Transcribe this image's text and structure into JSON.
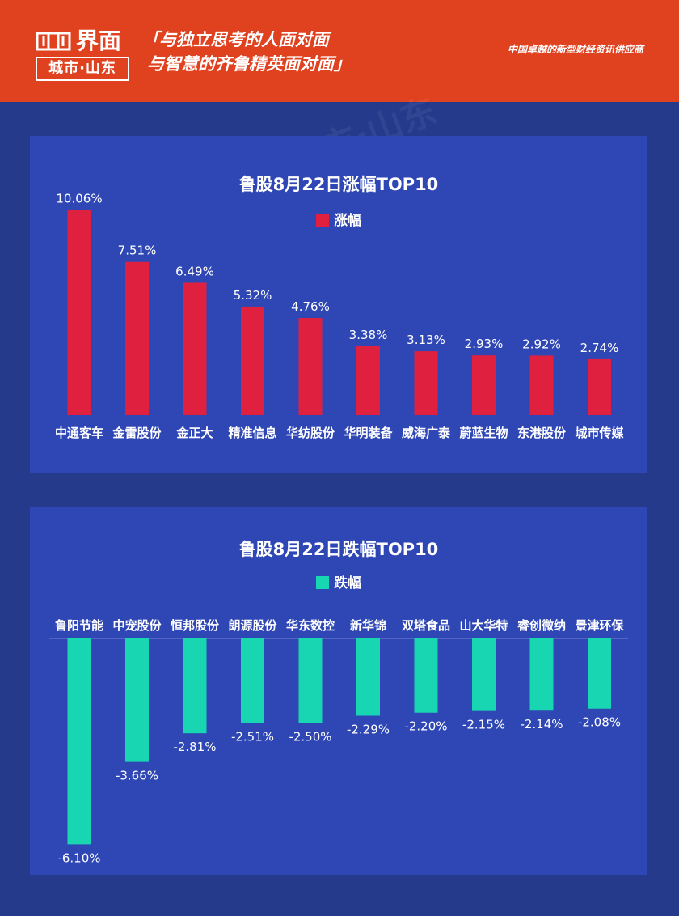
{
  "header": {
    "brand": "界面",
    "sub": "城市·山东",
    "slogan_line1": "「与独立思考的人面对面",
    "slogan_line2": "与智慧的齐鲁精英面对面」",
    "tagline": "中国卓越的新型财经资讯供应商"
  },
  "colors": {
    "header_bg": "#e0411f",
    "page_bg": "#263a8c",
    "panel_bg": "#2f47b5",
    "gain": "#e0203f",
    "loss": "#19d6b2"
  },
  "chart_data": [
    {
      "type": "bar",
      "title": "鲁股8月22日涨幅TOP10",
      "legend": "涨幅",
      "categories": [
        "中通客车",
        "金雷股份",
        "金正大",
        "精准信息",
        "华纺股份",
        "华明装备",
        "威海广泰",
        "蔚蓝生物",
        "东港股份",
        "城市传媒"
      ],
      "values": [
        10.06,
        7.51,
        6.49,
        5.32,
        4.76,
        3.38,
        3.13,
        2.93,
        2.92,
        2.74
      ],
      "labels": [
        "10.06%",
        "7.51%",
        "6.49%",
        "5.32%",
        "4.76%",
        "3.38%",
        "3.13%",
        "2.93%",
        "2.92%",
        "2.74%"
      ]
    },
    {
      "type": "bar",
      "title": "鲁股8月22日跌幅TOP10",
      "legend": "跌幅",
      "categories": [
        "鲁阳节能",
        "中宠股份",
        "恒邦股份",
        "朗源股份",
        "华东数控",
        "新华锦",
        "双塔食品",
        "山大华特",
        "睿创微纳",
        "景津环保"
      ],
      "values": [
        -6.1,
        -3.66,
        -2.81,
        -2.51,
        -2.5,
        -2.29,
        -2.2,
        -2.15,
        -2.14,
        -2.08
      ],
      "labels": [
        "-6.10%",
        "-3.66%",
        "-2.81%",
        "-2.51%",
        "-2.50%",
        "-2.29%",
        "-2.20%",
        "-2.15%",
        "-2.14%",
        "-2.08%"
      ]
    }
  ]
}
